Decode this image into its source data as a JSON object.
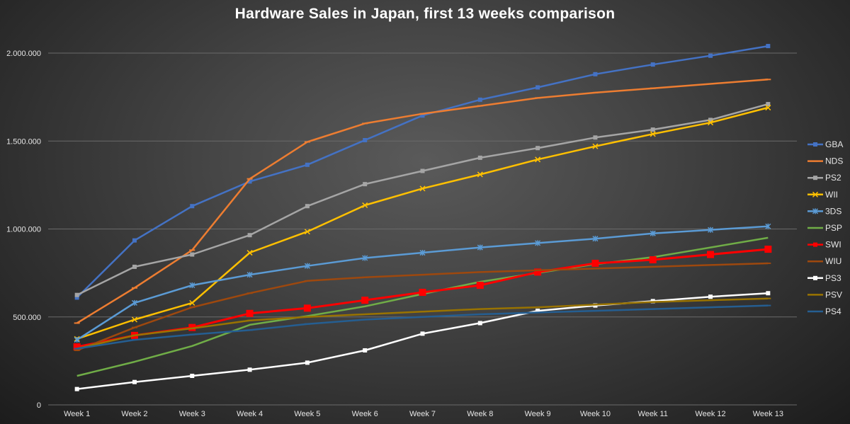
{
  "chart_data": {
    "type": "line",
    "title": "Hardware Sales in Japan, first 13 weeks comparison",
    "xlabel": "",
    "ylabel": "",
    "ylim": [
      0,
      2000000
    ],
    "yticks": [
      0,
      500000,
      1000000,
      1500000,
      2000000
    ],
    "ytick_labels": [
      "0",
      "500.000",
      "1.000.000",
      "1.500.000",
      "2.000.000"
    ],
    "grid": true,
    "legend_position": "right",
    "categories": [
      "Week 1",
      "Week 2",
      "Week 3",
      "Week 4",
      "Week 5",
      "Week 6",
      "Week 7",
      "Week 8",
      "Week 9",
      "Week 10",
      "Week 11",
      "Week 12",
      "Week 13"
    ],
    "series": [
      {
        "name": "GBA",
        "color": "#4472c4",
        "marker": "square",
        "values": [
          610000,
          935000,
          1130000,
          1270000,
          1365000,
          1505000,
          1645000,
          1735000,
          1805000,
          1880000,
          1935000,
          1985000,
          2040000
        ]
      },
      {
        "name": "NDS",
        "color": "#ed7d31",
        "marker": "dash",
        "values": [
          465000,
          665000,
          880000,
          1285000,
          1495000,
          1600000,
          1655000,
          1700000,
          1745000,
          1775000,
          1800000,
          1825000,
          1850000
        ]
      },
      {
        "name": "PS2",
        "color": "#a5a5a5",
        "marker": "square",
        "values": [
          625000,
          785000,
          855000,
          965000,
          1130000,
          1255000,
          1330000,
          1405000,
          1460000,
          1520000,
          1565000,
          1620000,
          1710000
        ]
      },
      {
        "name": "WII",
        "color": "#ffc000",
        "marker": "cross",
        "values": [
          375000,
          485000,
          580000,
          865000,
          985000,
          1135000,
          1230000,
          1310000,
          1395000,
          1470000,
          1540000,
          1605000,
          1690000
        ]
      },
      {
        "name": "3DS",
        "color": "#5b9bd5",
        "marker": "star",
        "values": [
          370000,
          580000,
          680000,
          740000,
          790000,
          835000,
          865000,
          895000,
          920000,
          945000,
          975000,
          995000,
          1015000
        ]
      },
      {
        "name": "PSP",
        "color": "#70ad47",
        "marker": "none",
        "values": [
          165000,
          245000,
          335000,
          455000,
          505000,
          560000,
          630000,
          700000,
          750000,
          800000,
          840000,
          895000,
          950000
        ]
      },
      {
        "name": "SWI",
        "color": "#ff0000",
        "marker": "bigsquare",
        "values": [
          330000,
          395000,
          440000,
          520000,
          550000,
          595000,
          640000,
          680000,
          755000,
          805000,
          825000,
          855000,
          885000
        ]
      },
      {
        "name": "WIU",
        "color": "#9e480e",
        "marker": "dash",
        "values": [
          310000,
          440000,
          555000,
          635000,
          705000,
          725000,
          740000,
          755000,
          765000,
          775000,
          785000,
          795000,
          805000
        ]
      },
      {
        "name": "PS3",
        "color": "#ffffff",
        "marker": "square",
        "values": [
          90000,
          130000,
          165000,
          200000,
          240000,
          310000,
          405000,
          465000,
          535000,
          565000,
          590000,
          615000,
          635000
        ]
      },
      {
        "name": "PSV",
        "color": "#997300",
        "marker": "dash",
        "values": [
          320000,
          395000,
          435000,
          480000,
          500000,
          515000,
          530000,
          545000,
          555000,
          570000,
          585000,
          595000,
          605000
        ]
      },
      {
        "name": "PS4",
        "color": "#255e91",
        "marker": "dash",
        "values": [
          320000,
          370000,
          400000,
          425000,
          460000,
          485000,
          500000,
          515000,
          525000,
          535000,
          545000,
          555000,
          565000
        ]
      }
    ]
  }
}
